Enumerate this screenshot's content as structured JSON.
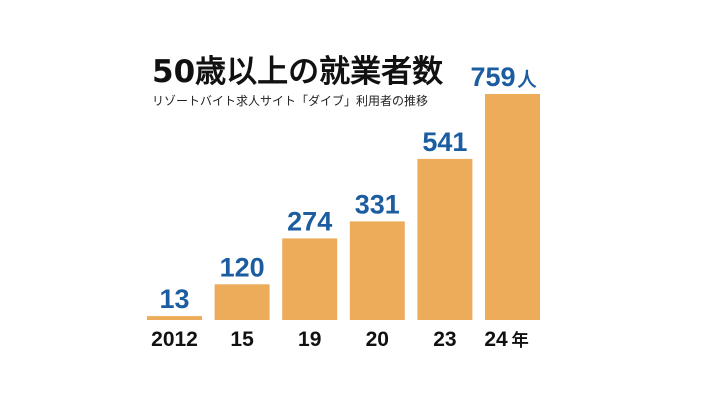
{
  "colors": {
    "bar": "#ECAC5A",
    "value_label": "#1C5CA0",
    "axis_text": "#111111"
  },
  "chart_data": {
    "type": "bar",
    "title": "50歳以上の就業者数",
    "subtitle": "リゾートバイト求人サイト「ダイブ」利用者の推移",
    "categories": [
      "2012",
      "15",
      "19",
      "20",
      "23",
      "24"
    ],
    "category_unit": "年",
    "values": [
      13,
      120,
      274,
      331,
      541,
      759
    ],
    "value_unit": "人",
    "ylim": [
      0,
      759
    ],
    "grid": false,
    "legend": "none"
  }
}
